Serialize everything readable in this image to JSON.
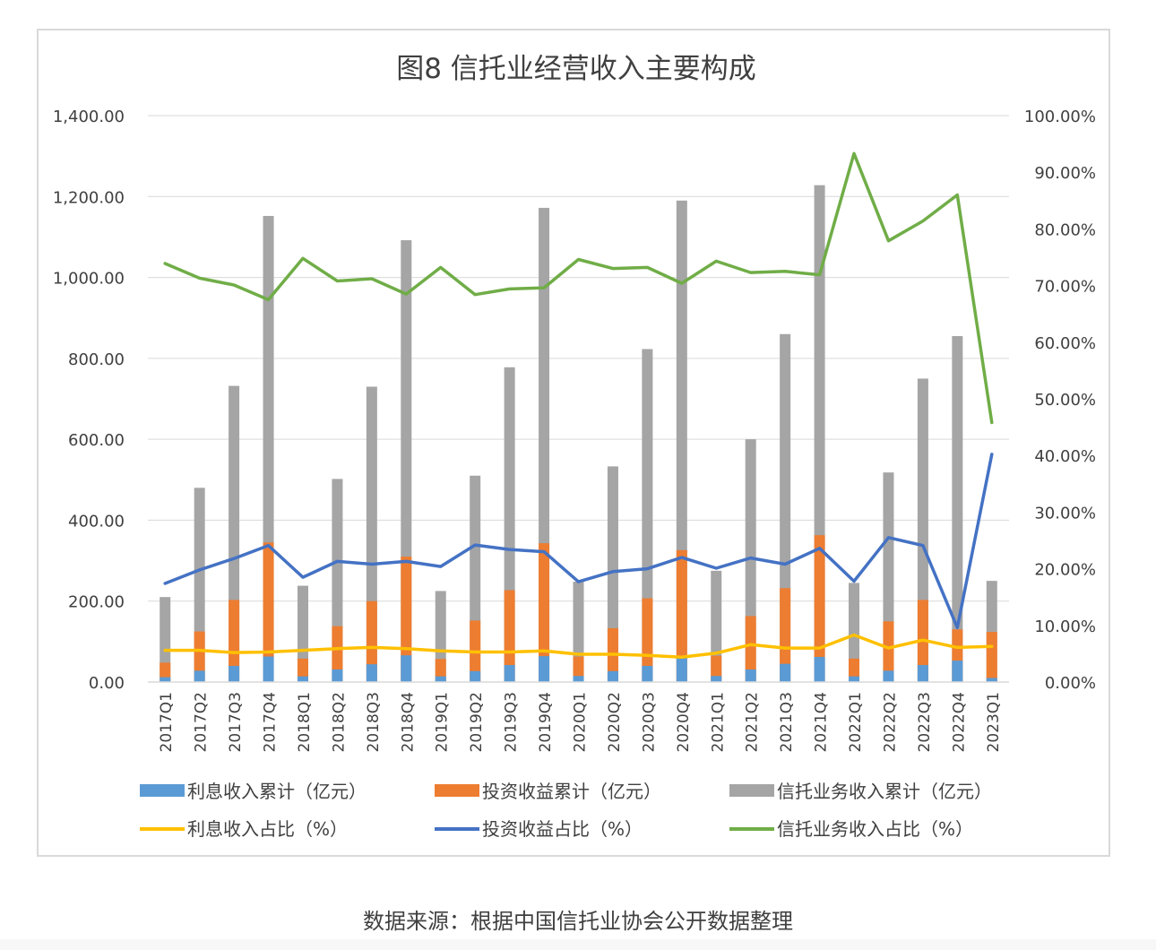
{
  "chart_data": {
    "type": "bar",
    "title": "图8  信托业经营收入主要构成",
    "categories": [
      "2017Q1",
      "2017Q2",
      "2017Q3",
      "2017Q4",
      "2018Q1",
      "2018Q2",
      "2018Q3",
      "2018Q4",
      "2019Q1",
      "2019Q2",
      "2019Q3",
      "2019Q4",
      "2020Q1",
      "2020Q2",
      "2020Q3",
      "2020Q4",
      "2021Q1",
      "2021Q2",
      "2021Q3",
      "2021Q4",
      "2022Q1",
      "2022Q2",
      "2022Q3",
      "2022Q4",
      "2023Q1"
    ],
    "bar_series": [
      {
        "name": "利息收入累计（亿元）",
        "color": "#5b9bd5",
        "values": [
          12,
          28,
          40,
          63,
          14,
          31,
          44,
          66,
          14,
          27,
          42,
          64,
          15,
          27,
          40,
          60,
          15,
          31,
          45,
          62,
          14,
          28,
          42,
          53,
          10
        ]
      },
      {
        "name": "投资收益累计（亿元）",
        "color": "#ed7d31",
        "values": [
          48,
          125,
          203,
          345,
          58,
          138,
          200,
          310,
          57,
          152,
          227,
          343,
          63,
          133,
          207,
          326,
          65,
          163,
          232,
          363,
          58,
          150,
          203,
          130,
          124
        ]
      },
      {
        "name": "信托业务收入累计（亿元）",
        "color": "#a5a5a5",
        "values": [
          210,
          480,
          732,
          1152,
          238,
          502,
          730,
          1092,
          225,
          510,
          778,
          1172,
          248,
          533,
          823,
          1190,
          275,
          600,
          860,
          1228,
          245,
          518,
          750,
          855,
          250
        ]
      }
    ],
    "line_series": [
      {
        "name": "利息收入占比（%）",
        "color": "#ffc000",
        "values": [
          5.6,
          5.6,
          5.2,
          5.3,
          5.6,
          5.9,
          6.1,
          5.9,
          5.5,
          5.3,
          5.3,
          5.5,
          4.9,
          4.9,
          4.7,
          4.4,
          5.1,
          6.6,
          6.0,
          6.0,
          8.3,
          6.0,
          7.4,
          6.1,
          6.3
        ]
      },
      {
        "name": "投资收益占比（%）",
        "color": "#4472c4",
        "values": [
          17.4,
          19.8,
          21.8,
          24.1,
          18.5,
          21.3,
          20.8,
          21.3,
          20.4,
          24.2,
          23.4,
          23.0,
          17.7,
          19.5,
          20.0,
          22.0,
          20.1,
          21.9,
          20.8,
          23.6,
          17.8,
          25.5,
          24.1,
          9.6,
          40.2
        ]
      },
      {
        "name": "信托业务收入占比（%）",
        "color": "#70ad47",
        "values": [
          73.9,
          71.3,
          70.1,
          67.5,
          74.8,
          70.8,
          71.2,
          68.5,
          73.2,
          68.4,
          69.4,
          69.6,
          74.6,
          73.0,
          73.2,
          70.4,
          74.3,
          72.3,
          72.5,
          71.9,
          93.3,
          77.9,
          81.4,
          86.0,
          45.8
        ]
      }
    ],
    "left_axis": {
      "ylim": [
        0,
        1400
      ],
      "ticks": [
        "0.00",
        "200.00",
        "400.00",
        "600.00",
        "800.00",
        "1,000.00",
        "1,200.00",
        "1,400.00"
      ]
    },
    "right_axis": {
      "ylim": [
        0,
        100
      ],
      "ticks": [
        "0.00%",
        "10.00%",
        "20.00%",
        "30.00%",
        "40.00%",
        "50.00%",
        "60.00%",
        "70.00%",
        "80.00%",
        "90.00%",
        "100.00%"
      ]
    },
    "grid": true,
    "legend_position": "bottom"
  },
  "source_note": "数据来源：根据中国信托业协会公开数据整理"
}
